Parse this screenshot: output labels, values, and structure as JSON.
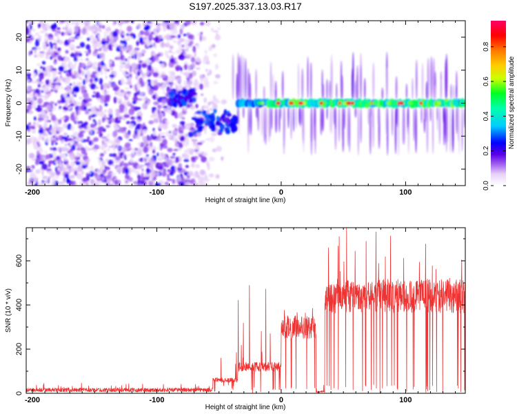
{
  "title": "S197.2025.337.13.03.R17",
  "chart_data": [
    {
      "type": "heatmap",
      "xlabel": "Height of straight line (km)",
      "ylabel": "Frequency (Hz)",
      "xlim": [
        -205,
        148
      ],
      "ylim": [
        -25,
        25
      ],
      "xticks": [
        -200,
        -100,
        0,
        100
      ],
      "yticks": [
        -20,
        -10,
        0,
        10,
        20
      ],
      "colorbar": {
        "label": "Normalized spectral amplitude",
        "range": [
          0,
          0.95
        ],
        "ticks": [
          0,
          0.2,
          0.4,
          0.6,
          0.8
        ],
        "tick_labels": [
          "0.0",
          "0.2",
          "0.4",
          "0.6",
          "0.8"
        ],
        "colormap": [
          "#ffffff",
          "#e8d2f8",
          "#b87cf0",
          "#8c32ee",
          "#4b00e6",
          "#0000ff",
          "#00ccff",
          "#00ff66",
          "#ffff00",
          "#ff8000",
          "#ff0000",
          "#ff0066"
        ]
      },
      "features": [
        {
          "name": "noise",
          "x_range": [
            -205,
            -55
          ],
          "freq_range": [
            -25,
            25
          ],
          "amplitude": "0.05-0.25"
        },
        {
          "name": "carrier-onset",
          "x_range": [
            -90,
            -35
          ],
          "freq_range": [
            -8,
            4
          ],
          "amplitude": "0.2-0.35"
        },
        {
          "name": "carrier-line",
          "x_range": [
            -35,
            148
          ],
          "freq": 0,
          "amplitude": "0.4-0.9"
        }
      ]
    },
    {
      "type": "line",
      "xlabel": "Height of straight line (km)",
      "ylabel": "SNR (10 * v/v)",
      "xlim": [
        -205,
        148
      ],
      "ylim": [
        0,
        750
      ],
      "xticks": [
        -200,
        -100,
        0,
        100
      ],
      "yticks": [
        0,
        200,
        400,
        600
      ],
      "color": "#ee3333",
      "series": [
        {
          "name": "SNR",
          "segments": [
            {
              "x": [
                -205,
                -55
              ],
              "baseline": 20,
              "range": [
                0,
                60
              ]
            },
            {
              "x": [
                -55,
                -35
              ],
              "baseline": 60,
              "range": [
                0,
                200
              ]
            },
            {
              "x": [
                -35,
                0
              ],
              "baseline": 120,
              "range": [
                0,
                490
              ]
            },
            {
              "x": [
                0,
                28
              ],
              "baseline": 300,
              "range": [
                0,
                390
              ]
            },
            {
              "x": [
                28,
                35
              ],
              "baseline": 10,
              "range": [
                0,
                40
              ]
            },
            {
              "x": [
                35,
                148
              ],
              "baseline": 440,
              "range": [
                0,
                755
              ]
            }
          ]
        }
      ]
    }
  ]
}
